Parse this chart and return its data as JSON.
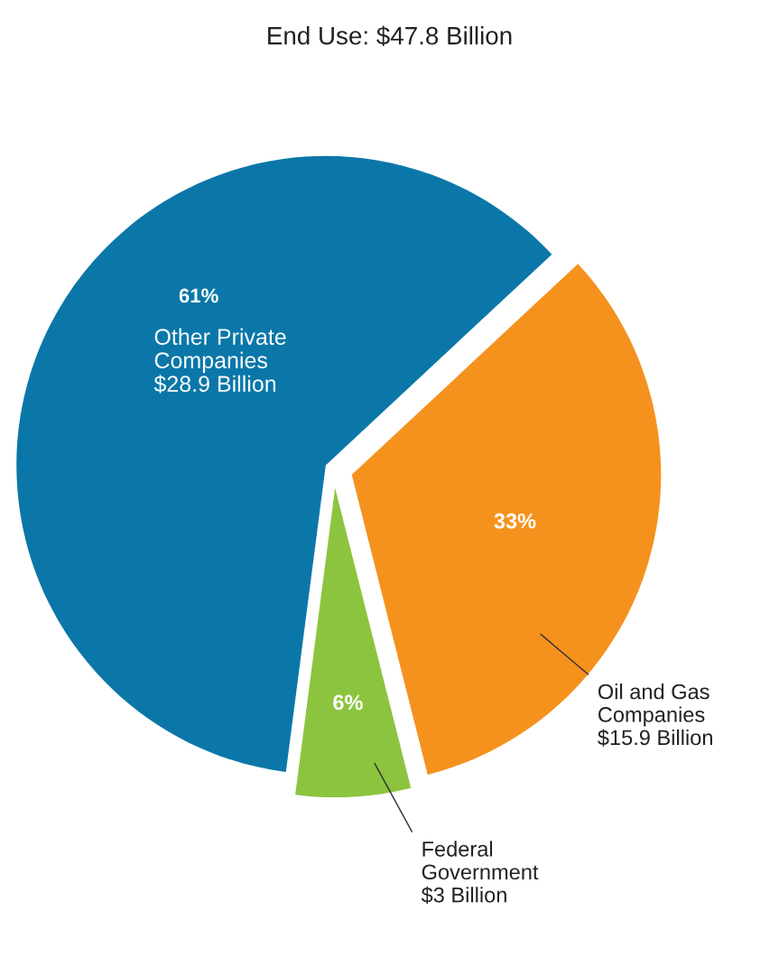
{
  "chart_data": {
    "type": "pie",
    "title": "End Use: $47.8 Billion",
    "categories": [
      "Other Private\nCompanies\n$28.9 Billion",
      "Federal\nGovernment\n$3 Billion",
      "Oil and Gas\nCompanies\n$15.9 Billion"
    ],
    "values": [
      61,
      6,
      33
    ],
    "value_labels": [
      "61%",
      "6%",
      "33%"
    ],
    "colors": [
      "#0b77a8",
      "#8cc43f",
      "#f5921e"
    ]
  }
}
